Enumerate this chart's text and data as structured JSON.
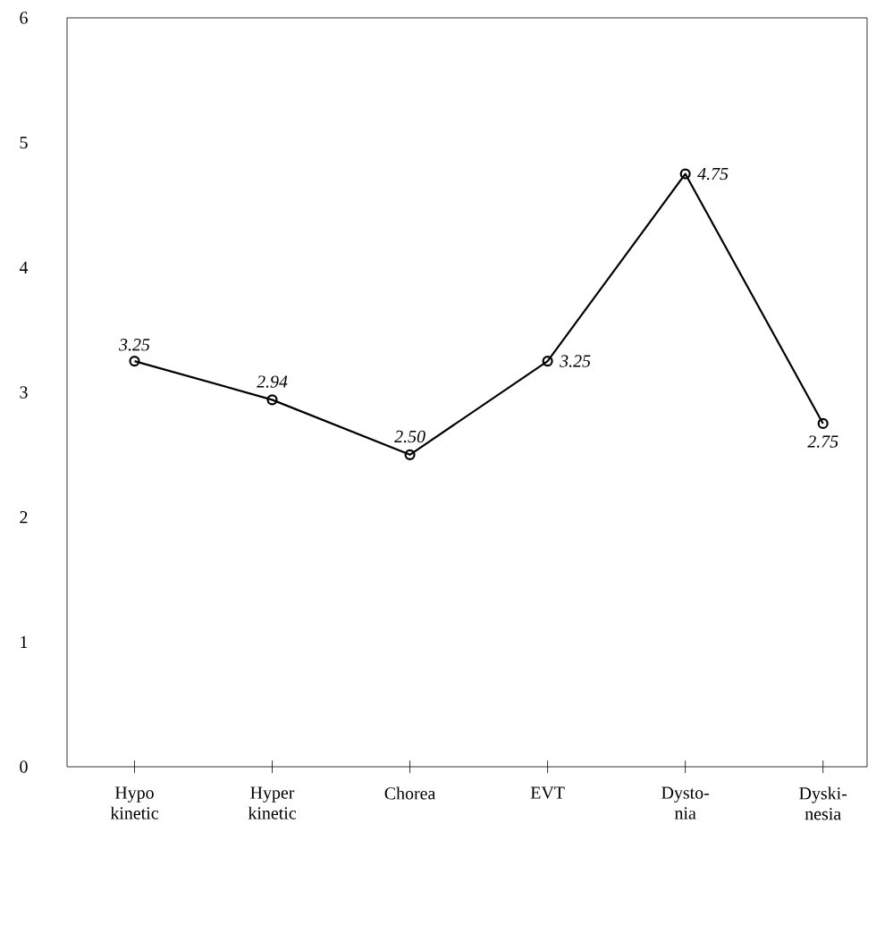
{
  "chart_data": {
    "type": "line",
    "categories": [
      "Hypo kinetic",
      "Hyper kinetic",
      "Chorea",
      "EVT",
      "Dysto-nia",
      "Dyski-nesia"
    ],
    "values": [
      3.25,
      2.94,
      2.5,
      3.25,
      4.75,
      2.75
    ],
    "value_labels": [
      "3.25",
      "2.94",
      "2.50",
      "3.25",
      "4.75",
      "2.75"
    ],
    "color": "#000000",
    "ylim": [
      0,
      6
    ],
    "yticks": [
      0,
      1,
      2,
      3,
      4,
      5,
      6
    ],
    "marker": "circle",
    "line_style": "solid",
    "grid": false
  }
}
